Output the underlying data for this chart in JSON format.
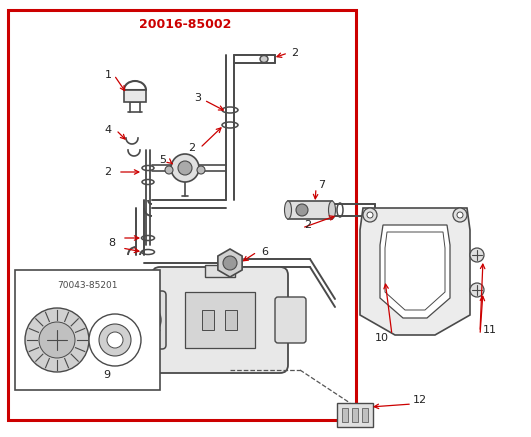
{
  "title": "20016-85002",
  "title_color": "#cc0000",
  "border_color": "#cc0000",
  "line_color": "#4a4a4a",
  "bg_color": "#ffffff",
  "figsize": [
    5.31,
    4.37
  ],
  "dpi": 100,
  "sub_label": "70043-85201",
  "label_color": "#222222",
  "red_arrow_color": "#cc0000"
}
